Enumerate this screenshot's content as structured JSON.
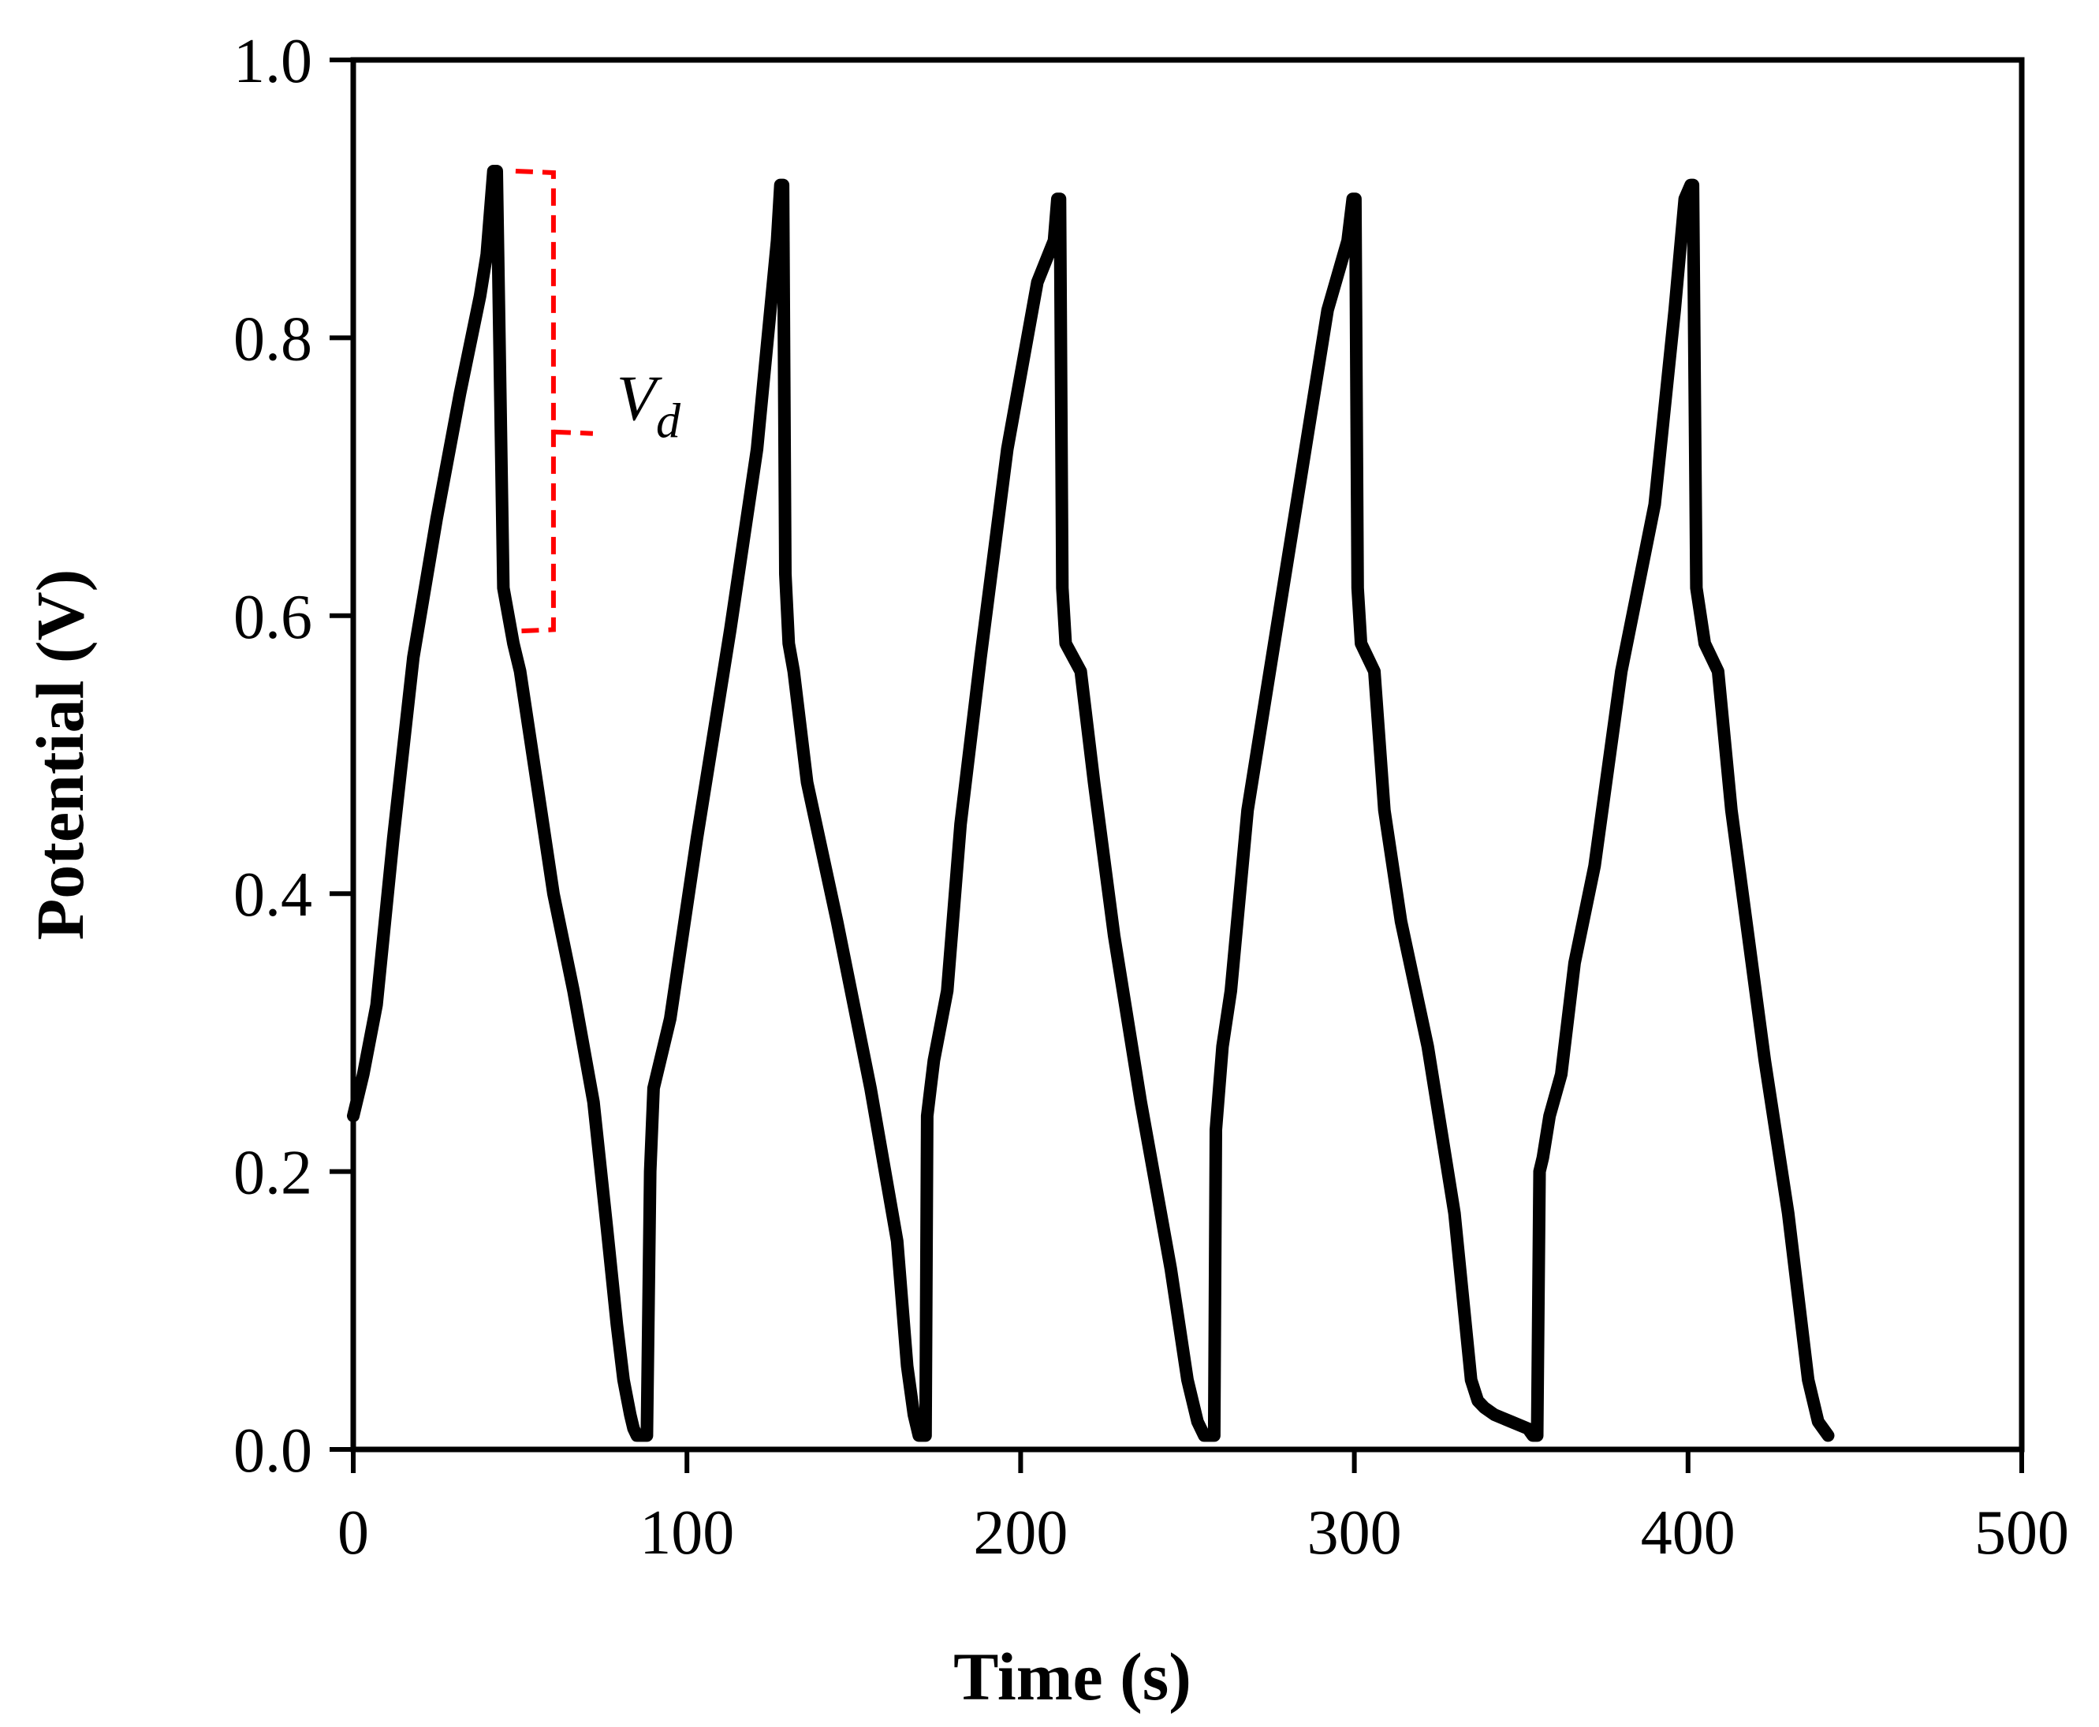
{
  "chart_data": {
    "type": "line",
    "title": "",
    "xlabel": "Time (s)",
    "ylabel": "Potential (V)",
    "xlim": [
      0,
      500
    ],
    "ylim": [
      0,
      1.0
    ],
    "x_ticks": [
      "0",
      "100",
      "200",
      "300",
      "400",
      "500"
    ],
    "x_tick_values": [
      0,
      100,
      200,
      300,
      400,
      500
    ],
    "y_ticks": [
      "0.0",
      "0.2",
      "0.4",
      "0.6",
      "0.8",
      "1.0"
    ],
    "y_tick_values": [
      0,
      0.2,
      0.4,
      0.6,
      0.8,
      1.0
    ],
    "grid": false,
    "legend": "none",
    "series": [
      {
        "name": "Potential",
        "color": "#000000",
        "x": [
          0,
          3,
          7,
          12,
          18,
          25,
          32,
          38,
          40,
          42,
          43,
          45,
          48,
          50,
          55,
          60,
          66,
          72,
          76,
          79,
          81,
          83,
          84,
          85,
          86,
          87,
          88,
          89,
          90,
          95,
          103,
          113,
          121,
          127,
          128,
          128.8,
          129.5,
          130.5,
          132,
          136,
          145,
          155,
          163,
          166,
          168,
          169.5,
          170.5,
          171.5,
          172,
          173,
          174,
          178,
          182,
          188,
          196,
          205,
          210,
          211,
          211.8,
          212.5,
          213.5,
          218,
          222,
          228,
          236,
          245,
          250,
          253,
          255,
          256.5,
          258,
          258.5,
          259.5,
          260.5,
          263,
          268,
          276,
          284,
          292,
          298,
          299.5,
          300.3,
          301,
          302,
          306,
          309,
          314,
          322,
          330,
          335,
          337,
          339,
          342,
          347,
          352,
          353.5,
          354.8,
          355.5,
          356.5,
          358.5,
          362,
          366,
          372,
          380,
          390,
          396,
          399,
          400.8,
          401.5,
          402.5,
          405,
          409,
          413,
          418,
          423,
          430,
          436,
          439,
          442
        ],
        "values": [
          0.24,
          0.27,
          0.32,
          0.44,
          0.57,
          0.67,
          0.76,
          0.83,
          0.86,
          0.92,
          0.92,
          0.62,
          0.58,
          0.56,
          0.48,
          0.4,
          0.33,
          0.25,
          0.16,
          0.09,
          0.05,
          0.025,
          0.015,
          0.01,
          0.01,
          0.01,
          0.01,
          0.2,
          0.26,
          0.31,
          0.44,
          0.59,
          0.72,
          0.87,
          0.91,
          0.91,
          0.63,
          0.58,
          0.56,
          0.48,
          0.38,
          0.26,
          0.15,
          0.06,
          0.025,
          0.01,
          0.01,
          0.01,
          0.24,
          0.26,
          0.28,
          0.33,
          0.45,
          0.57,
          0.72,
          0.84,
          0.87,
          0.9,
          0.9,
          0.62,
          0.58,
          0.56,
          0.48,
          0.37,
          0.25,
          0.13,
          0.05,
          0.02,
          0.01,
          0.01,
          0.01,
          0.23,
          0.26,
          0.29,
          0.33,
          0.46,
          0.58,
          0.7,
          0.82,
          0.87,
          0.9,
          0.9,
          0.62,
          0.58,
          0.56,
          0.46,
          0.38,
          0.29,
          0.17,
          0.05,
          0.035,
          0.03,
          0.025,
          0.02,
          0.015,
          0.01,
          0.01,
          0.2,
          0.21,
          0.24,
          0.27,
          0.35,
          0.42,
          0.56,
          0.68,
          0.82,
          0.9,
          0.91,
          0.91,
          0.62,
          0.58,
          0.56,
          0.46,
          0.37,
          0.28,
          0.17,
          0.05,
          0.02,
          0.01
        ]
      }
    ],
    "annotations": [
      {
        "label": "V",
        "subscript": "d",
        "color": "#ff0000",
        "type": "bracket",
        "x": 60,
        "y_from": 0.92,
        "y_to": 0.59
      }
    ]
  }
}
